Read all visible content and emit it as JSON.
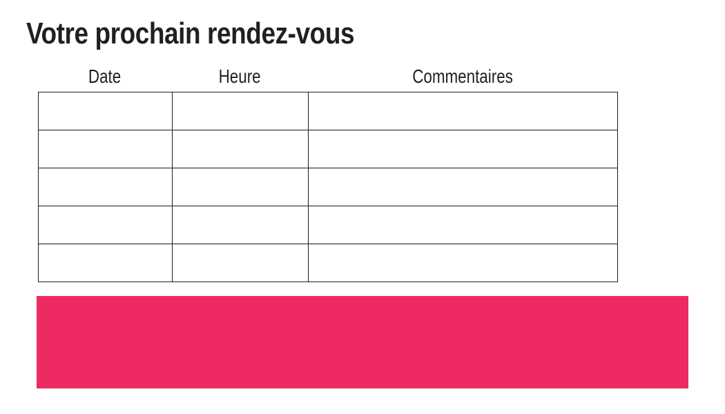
{
  "title": "Votre prochain rendez-vous",
  "table": {
    "headers": [
      "Date",
      "Heure",
      "Commentaires"
    ],
    "rows": [
      [
        "",
        "",
        ""
      ],
      [
        "",
        "",
        ""
      ],
      [
        "",
        "",
        ""
      ],
      [
        "",
        "",
        ""
      ],
      [
        "",
        "",
        ""
      ]
    ]
  },
  "banner": {
    "text": ""
  },
  "colors": {
    "text": "#231f20",
    "table_border": "#1b1b1b",
    "accent_pink": "#ED2B62",
    "background": "#ffffff"
  }
}
